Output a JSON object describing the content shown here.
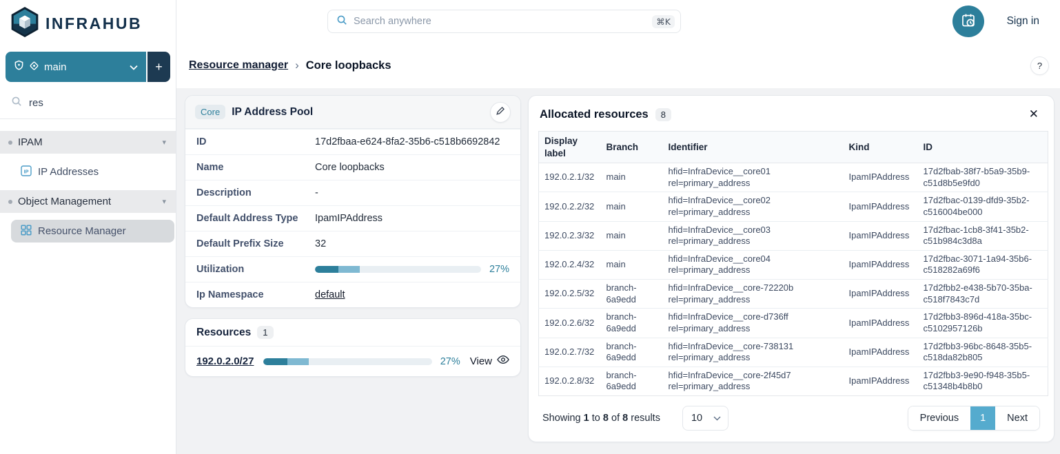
{
  "colors": {
    "primary_teal": "#2d7f9b",
    "navy": "#1d3a52",
    "active_page": "#55abce",
    "bar_dark": "#2d7f9b",
    "bar_light": "#7fb9d2"
  },
  "header": {
    "logo_text": "INFRAHUB",
    "search_placeholder": "Search anywhere",
    "search_shortcut": "⌘K",
    "sign_in": "Sign in"
  },
  "sidebar": {
    "branch": {
      "name": "main",
      "add_label": "+"
    },
    "filter_value": "res",
    "groups": [
      {
        "label": "IPAM",
        "items": [
          {
            "label": "IP Addresses"
          }
        ]
      },
      {
        "label": "Object Management",
        "items": [
          {
            "label": "Resource Manager"
          }
        ]
      }
    ]
  },
  "icons": {
    "chevron_down": "▾",
    "breadcrumb_separator": "›",
    "close": "✕",
    "help": "?"
  },
  "breadcrumb": {
    "parent": "Resource manager",
    "current": "Core loopbacks"
  },
  "pool_card": {
    "badge": "Core",
    "title": "IP Address Pool",
    "fields": [
      {
        "label": "ID",
        "value": "17d2fbaa-e624-8fa2-35b6-c518b6692842"
      },
      {
        "label": "Name",
        "value": "Core loopbacks"
      },
      {
        "label": "Description",
        "value": "-"
      },
      {
        "label": "Default Address Type",
        "value": "IpamIPAddress"
      },
      {
        "label": "Default Prefix Size",
        "value": "32"
      }
    ],
    "utilization": {
      "label": "Utilization",
      "percent_label": "27%",
      "dark_pct": 14,
      "light_pct": 13
    },
    "namespace": {
      "label": "Ip Namespace",
      "value": "default"
    }
  },
  "resources_card": {
    "title": "Resources",
    "count": "1",
    "item": {
      "prefix": "192.0.2.0/27",
      "percent_label": "27%",
      "view_label": "View",
      "dark_pct": 14,
      "light_pct": 13
    }
  },
  "allocated": {
    "title": "Allocated resources",
    "count": "8",
    "columns": [
      "Display label",
      "Branch",
      "Identifier",
      "Kind",
      "ID"
    ],
    "rows": [
      {
        "display": "192.0.2.1/32",
        "branch": "main",
        "hfid": "hfid=InfraDevice__core01",
        "rel": "rel=primary_address",
        "kind": "IpamIPAddress",
        "id": "17d2fbab-38f7-b5a9-35b9-c51d8b5e9fd0"
      },
      {
        "display": "192.0.2.2/32",
        "branch": "main",
        "hfid": "hfid=InfraDevice__core02",
        "rel": "rel=primary_address",
        "kind": "IpamIPAddress",
        "id": "17d2fbac-0139-dfd9-35b2-c516004be000"
      },
      {
        "display": "192.0.2.3/32",
        "branch": "main",
        "hfid": "hfid=InfraDevice__core03",
        "rel": "rel=primary_address",
        "kind": "IpamIPAddress",
        "id": "17d2fbac-1cb8-3f41-35b2-c51b984c3d8a"
      },
      {
        "display": "192.0.2.4/32",
        "branch": "main",
        "hfid": "hfid=InfraDevice__core04",
        "rel": "rel=primary_address",
        "kind": "IpamIPAddress",
        "id": "17d2fbac-3071-1a94-35b6-c518282a69f6"
      },
      {
        "display": "192.0.2.5/32",
        "branch": "branch-6a9edd",
        "hfid": "hfid=InfraDevice__core-72220b",
        "rel": "rel=primary_address",
        "kind": "IpamIPAddress",
        "id": "17d2fbb2-e438-5b70-35ba-c518f7843c7d"
      },
      {
        "display": "192.0.2.6/32",
        "branch": "branch-6a9edd",
        "hfid": "hfid=InfraDevice__core-d736ff",
        "rel": "rel=primary_address",
        "kind": "IpamIPAddress",
        "id": "17d2fbb3-896d-418a-35bc-c5102957126b"
      },
      {
        "display": "192.0.2.7/32",
        "branch": "branch-6a9edd",
        "hfid": "hfid=InfraDevice__core-738131",
        "rel": "rel=primary_address",
        "kind": "IpamIPAddress",
        "id": "17d2fbb3-96bc-8648-35b5-c518da82b805"
      },
      {
        "display": "192.0.2.8/32",
        "branch": "branch-6a9edd",
        "hfid": "hfid=InfraDevice__core-2f45d7",
        "rel": "rel=primary_address",
        "kind": "IpamIPAddress",
        "id": "17d2fbb3-9e90-f948-35b5-c51348b4b8b0"
      }
    ],
    "footer": {
      "showing_word": "Showing",
      "from": "1",
      "to_word": "to",
      "to": "8",
      "of_word": "of",
      "total": "8",
      "results_word": "results",
      "page_size": "10",
      "previous_label": "Previous",
      "current_page": "1",
      "next_label": "Next"
    }
  }
}
